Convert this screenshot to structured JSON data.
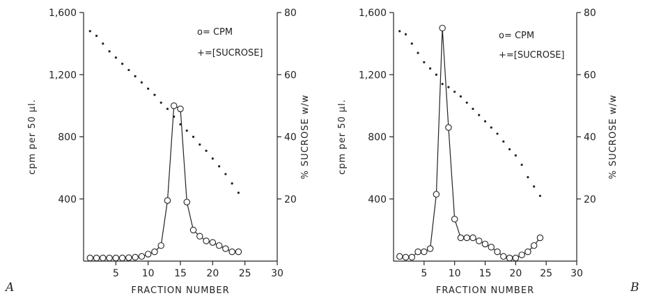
{
  "chart_data": [
    {
      "panel_label": "A",
      "type": "line",
      "xlabel": "FRACTION NUMBER",
      "ylabel_left": "cpm per 50 µl.",
      "ylabel_right": "% SUCROSE w/w",
      "xlim": [
        0,
        30
      ],
      "ylim_left": [
        0,
        1600
      ],
      "ylim_right": [
        0,
        80
      ],
      "x_ticks": [
        "5",
        "10",
        "15",
        "20",
        "25",
        "30"
      ],
      "y_left_ticks": [
        "400",
        "800",
        "1,200",
        "1,600"
      ],
      "y_right_ticks": [
        "20",
        "40",
        "60",
        "80"
      ],
      "legend": [
        "o= CPM",
        "+=[SUCROSE]"
      ],
      "series": [
        {
          "name": "CPM",
          "axis": "left",
          "marker": "open-circle",
          "x": [
            1,
            2,
            3,
            4,
            5,
            6,
            7,
            8,
            9,
            10,
            11,
            12,
            13,
            14,
            15,
            16,
            17,
            18,
            19,
            20,
            21,
            22,
            23,
            24
          ],
          "values": [
            20,
            20,
            20,
            20,
            20,
            20,
            22,
            25,
            30,
            45,
            60,
            100,
            390,
            1000,
            980,
            380,
            200,
            160,
            130,
            120,
            100,
            80,
            60,
            60
          ]
        },
        {
          "name": "[SUCROSE]",
          "axis": "right",
          "marker": "dot",
          "x": [
            1,
            2,
            3,
            4,
            5,
            6,
            7,
            8,
            9,
            10,
            11,
            12,
            13,
            14,
            15,
            16,
            17,
            18,
            19,
            20,
            21,
            22,
            23,
            24
          ],
          "values": [
            74,
            72.5,
            70,
            67.5,
            65.5,
            63.5,
            61.5,
            59.5,
            57.5,
            55.5,
            53.5,
            51,
            49,
            46.5,
            44,
            42,
            40,
            37.5,
            35.5,
            33,
            30.5,
            28,
            25,
            22
          ]
        }
      ]
    },
    {
      "panel_label": "B",
      "type": "line",
      "xlabel": "FRACTION NUMBER",
      "ylabel_left": "cpm per 50 µl.",
      "ylabel_right": "% SUCROSE w/w",
      "xlim": [
        0,
        30
      ],
      "ylim_left": [
        0,
        1600
      ],
      "ylim_right": [
        0,
        80
      ],
      "x_ticks": [
        "5",
        "10",
        "15",
        "20",
        "25",
        "30"
      ],
      "y_left_ticks": [
        "400",
        "800",
        "1,200",
        "1,600"
      ],
      "y_right_ticks": [
        "20",
        "40",
        "60",
        "80"
      ],
      "legend": [
        "o= CPM",
        "+=[SUCROSE]"
      ],
      "series": [
        {
          "name": "CPM",
          "axis": "left",
          "marker": "open-circle",
          "x": [
            1,
            2,
            3,
            4,
            5,
            6,
            7,
            8,
            9,
            10,
            11,
            12,
            13,
            14,
            15,
            16,
            17,
            18,
            19,
            20,
            21,
            22,
            23,
            24
          ],
          "values": [
            30,
            25,
            25,
            60,
            60,
            80,
            430,
            1500,
            860,
            270,
            150,
            150,
            150,
            130,
            110,
            90,
            60,
            30,
            20,
            20,
            40,
            60,
            100,
            150
          ]
        },
        {
          "name": "[SUCROSE]",
          "axis": "right",
          "marker": "dot",
          "x": [
            1,
            2,
            3,
            4,
            5,
            6,
            7,
            8,
            9,
            10,
            11,
            12,
            13,
            14,
            15,
            16,
            17,
            18,
            19,
            20,
            21,
            22,
            23,
            24
          ],
          "values": [
            74,
            73,
            70,
            67,
            64,
            62,
            60,
            57,
            56,
            54.5,
            53,
            51,
            49,
            47,
            45,
            43,
            41,
            38.5,
            36,
            34,
            31,
            27,
            24,
            21
          ]
        }
      ]
    }
  ]
}
